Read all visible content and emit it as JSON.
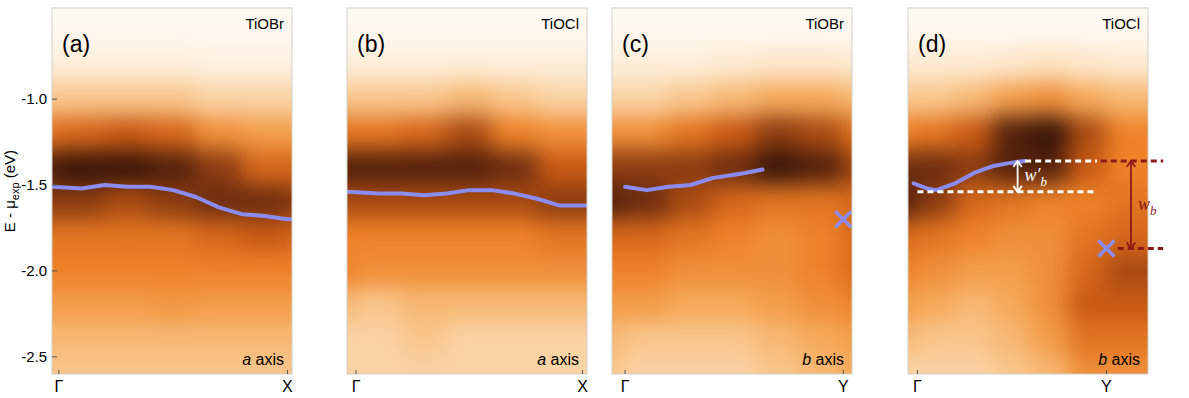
{
  "chart_data": [
    {
      "type": "heatmap",
      "panel": "(a)",
      "title": "TiOBr",
      "axis_label": {
        "text": "a",
        "suffix": " axis"
      },
      "xlim": [
        -0.03,
        1.02
      ],
      "ylim": [
        -2.6,
        -0.47
      ],
      "xticks": [
        {
          "value": 0,
          "label": "Γ"
        },
        {
          "value": 1,
          "label": "X"
        }
      ],
      "yticks": [
        {
          "value": -1,
          "label": "-1.0"
        },
        {
          "value": -1.5,
          "label": "-1.5"
        },
        {
          "value": -2,
          "label": "-2.0"
        },
        {
          "value": -2.5,
          "label": "-2.5"
        }
      ],
      "ylabel": {
        "text": "E - μ",
        "subscript": "exp",
        "suffix": " (eV)"
      },
      "tick_labels": true,
      "heatmap": {
        "x": [
          -0.1,
          0.1,
          0.3,
          0.5,
          0.7,
          0.9,
          1.1,
          1.3
        ],
        "y": [
          -0.4,
          -0.6,
          -0.8,
          -1.0,
          -1.2,
          -1.4,
          -1.6,
          -1.8,
          -2.0,
          -2.2,
          -2.4,
          -2.6,
          -2.8
        ],
        "zlim": [
          0,
          1
        ],
        "values": [
          [
            0,
            0,
            0,
            0,
            0,
            0,
            0,
            0
          ],
          [
            0.02,
            0.02,
            0.02,
            0.02,
            0.02,
            0.02,
            0.02,
            0.02
          ],
          [
            0.08,
            0.08,
            0.08,
            0.08,
            0.06,
            0.06,
            0.06,
            0.06
          ],
          [
            0.25,
            0.25,
            0.25,
            0.25,
            0.2,
            0.2,
            0.2,
            0.2
          ],
          [
            0.55,
            0.6,
            0.65,
            0.6,
            0.45,
            0.4,
            0.4,
            0.4
          ],
          [
            0.85,
            0.9,
            0.9,
            0.85,
            0.75,
            0.6,
            0.6,
            0.6
          ],
          [
            0.75,
            0.75,
            0.7,
            0.75,
            0.8,
            0.8,
            0.75,
            0.75
          ],
          [
            0.55,
            0.55,
            0.55,
            0.55,
            0.6,
            0.65,
            0.6,
            0.6
          ],
          [
            0.5,
            0.5,
            0.5,
            0.5,
            0.5,
            0.5,
            0.5,
            0.5
          ],
          [
            0.4,
            0.4,
            0.4,
            0.42,
            0.4,
            0.4,
            0.4,
            0.4
          ],
          [
            0.3,
            0.3,
            0.3,
            0.3,
            0.3,
            0.3,
            0.3,
            0.3
          ],
          [
            0.25,
            0.25,
            0.25,
            0.25,
            0.25,
            0.25,
            0.25,
            0.25
          ],
          [
            0.25,
            0.25,
            0.25,
            0.25,
            0.25,
            0.25,
            0.25,
            0.25
          ]
        ]
      },
      "series": [
        {
          "type": "line",
          "color": "#8a8cf0",
          "x": [
            -0.03,
            0.1,
            0.2,
            0.3,
            0.4,
            0.5,
            0.6,
            0.7,
            0.8,
            0.9,
            1.0,
            1.02
          ],
          "values": [
            -1.51,
            -1.52,
            -1.5,
            -1.51,
            -1.51,
            -1.53,
            -1.57,
            -1.63,
            -1.67,
            -1.68,
            -1.7,
            -1.7
          ]
        }
      ]
    },
    {
      "type": "heatmap",
      "panel": "(b)",
      "title": "TiOCl",
      "axis_label": {
        "text": "a",
        "suffix": " axis"
      },
      "xlim": [
        -0.04,
        1.02
      ],
      "ylim": [
        -2.6,
        -0.47
      ],
      "xticks": [
        {
          "value": 0,
          "label": "Γ"
        },
        {
          "value": 1,
          "label": "X"
        }
      ],
      "tick_labels": "x",
      "heatmap": {
        "x": [
          -0.1,
          0.1,
          0.3,
          0.5,
          0.7,
          0.9,
          1.1,
          1.3
        ],
        "y": [
          -0.4,
          -0.6,
          -0.8,
          -1.0,
          -1.2,
          -1.4,
          -1.6,
          -1.8,
          -2.0,
          -2.2,
          -2.4,
          -2.6,
          -2.8
        ],
        "zlim": [
          0,
          1
        ],
        "values": [
          [
            0,
            0,
            0,
            0,
            0,
            0,
            0,
            0
          ],
          [
            0.02,
            0.02,
            0.02,
            0.02,
            0.02,
            0.02,
            0.02,
            0.02
          ],
          [
            0.08,
            0.08,
            0.08,
            0.08,
            0.08,
            0.08,
            0.08,
            0.08
          ],
          [
            0.25,
            0.25,
            0.25,
            0.3,
            0.25,
            0.2,
            0.2,
            0.2
          ],
          [
            0.55,
            0.55,
            0.6,
            0.7,
            0.5,
            0.45,
            0.45,
            0.45
          ],
          [
            0.85,
            0.85,
            0.85,
            0.85,
            0.8,
            0.65,
            0.65,
            0.65
          ],
          [
            0.7,
            0.7,
            0.7,
            0.7,
            0.7,
            0.75,
            0.75,
            0.75
          ],
          [
            0.5,
            0.5,
            0.5,
            0.5,
            0.5,
            0.55,
            0.55,
            0.55
          ],
          [
            0.5,
            0.45,
            0.45,
            0.45,
            0.45,
            0.45,
            0.45,
            0.45
          ],
          [
            0.3,
            0.25,
            0.3,
            0.3,
            0.3,
            0.3,
            0.3,
            0.3
          ],
          [
            0.2,
            0.2,
            0.25,
            0.2,
            0.2,
            0.2,
            0.2,
            0.2
          ],
          [
            0.2,
            0.2,
            0.2,
            0.2,
            0.2,
            0.2,
            0.2,
            0.2
          ],
          [
            0.2,
            0.2,
            0.2,
            0.2,
            0.2,
            0.2,
            0.2,
            0.2
          ]
        ]
      },
      "series": [
        {
          "type": "line",
          "color": "#8a8cf0",
          "x": [
            -0.04,
            0.1,
            0.2,
            0.3,
            0.4,
            0.5,
            0.6,
            0.7,
            0.8,
            0.9,
            1.0,
            1.02
          ],
          "values": [
            -1.54,
            -1.55,
            -1.55,
            -1.56,
            -1.55,
            -1.53,
            -1.53,
            -1.55,
            -1.58,
            -1.62,
            -1.62,
            -1.62
          ]
        }
      ]
    },
    {
      "type": "heatmap",
      "panel": "(c)",
      "title": "TiOBr",
      "axis_label": {
        "text": "b",
        "suffix": " axis"
      },
      "xlim": [
        -0.06,
        1.04
      ],
      "ylim": [
        -2.6,
        -0.47
      ],
      "xticks": [
        {
          "value": 0,
          "label": "Γ"
        },
        {
          "value": 1,
          "label": "Y"
        }
      ],
      "tick_labels": "x",
      "heatmap": {
        "x": [
          -0.1,
          0.1,
          0.3,
          0.5,
          0.7,
          0.9,
          1.1,
          1.3
        ],
        "y": [
          -0.4,
          -0.6,
          -0.8,
          -1.0,
          -1.2,
          -1.4,
          -1.6,
          -1.8,
          -2.0,
          -2.2,
          -2.4,
          -2.6,
          -2.8
        ],
        "zlim": [
          0,
          1
        ],
        "values": [
          [
            0,
            0,
            0,
            0,
            0,
            0,
            0,
            0
          ],
          [
            0.02,
            0.02,
            0.02,
            0.02,
            0.02,
            0.02,
            0.02,
            0.02
          ],
          [
            0.08,
            0.08,
            0.08,
            0.1,
            0.12,
            0.12,
            0.1,
            0.1
          ],
          [
            0.2,
            0.2,
            0.25,
            0.3,
            0.35,
            0.35,
            0.3,
            0.3
          ],
          [
            0.45,
            0.45,
            0.55,
            0.65,
            0.75,
            0.7,
            0.55,
            0.55
          ],
          [
            0.75,
            0.75,
            0.75,
            0.8,
            0.9,
            0.85,
            0.7,
            0.7
          ],
          [
            0.85,
            0.8,
            0.7,
            0.6,
            0.55,
            0.55,
            0.6,
            0.6
          ],
          [
            0.6,
            0.6,
            0.55,
            0.5,
            0.45,
            0.5,
            0.6,
            0.6
          ],
          [
            0.5,
            0.5,
            0.45,
            0.45,
            0.45,
            0.5,
            0.6,
            0.6
          ],
          [
            0.4,
            0.4,
            0.35,
            0.35,
            0.4,
            0.45,
            0.5,
            0.5
          ],
          [
            0.3,
            0.25,
            0.25,
            0.25,
            0.3,
            0.35,
            0.4,
            0.4
          ],
          [
            0.25,
            0.2,
            0.2,
            0.2,
            0.25,
            0.3,
            0.35,
            0.35
          ],
          [
            0.25,
            0.2,
            0.2,
            0.2,
            0.25,
            0.3,
            0.35,
            0.35
          ]
        ]
      },
      "series": [
        {
          "type": "line",
          "color": "#8a8cf0",
          "x": [
            0,
            0.1,
            0.2,
            0.3,
            0.4,
            0.5,
            0.55,
            0.63
          ],
          "values": [
            -1.51,
            -1.53,
            -1.51,
            -1.5,
            -1.46,
            -1.44,
            -1.43,
            -1.41
          ]
        },
        {
          "type": "scatter",
          "marker": "x",
          "color": "#8a8cf0",
          "x": [
            1.0
          ],
          "values": [
            -1.7
          ]
        }
      ]
    },
    {
      "type": "heatmap",
      "panel": "(d)",
      "title": "TiOCl",
      "axis_label": {
        "text": "b",
        "suffix": " axis"
      },
      "xlim": [
        -0.05,
        1.22
      ],
      "ylim": [
        -2.6,
        -0.47
      ],
      "xticks": [
        {
          "value": 0,
          "label": "Γ"
        },
        {
          "value": 1,
          "label": "Y"
        }
      ],
      "tick_labels": "x",
      "heatmap": {
        "x": [
          -0.1,
          0.1,
          0.3,
          0.5,
          0.7,
          0.9,
          1.1,
          1.3
        ],
        "y": [
          -0.4,
          -0.6,
          -0.8,
          -1.0,
          -1.2,
          -1.4,
          -1.6,
          -1.8,
          -2.0,
          -2.2,
          -2.4,
          -2.6,
          -2.8
        ],
        "zlim": [
          0,
          1
        ],
        "values": [
          [
            0,
            0,
            0,
            0,
            0,
            0,
            0,
            0
          ],
          [
            0.02,
            0.02,
            0.02,
            0.02,
            0.02,
            0.02,
            0.02,
            0.02
          ],
          [
            0.1,
            0.1,
            0.1,
            0.12,
            0.15,
            0.12,
            0.1,
            0.1
          ],
          [
            0.25,
            0.25,
            0.3,
            0.4,
            0.45,
            0.35,
            0.3,
            0.3
          ],
          [
            0.5,
            0.55,
            0.65,
            0.85,
            0.9,
            0.7,
            0.5,
            0.5
          ],
          [
            0.8,
            0.8,
            0.75,
            0.85,
            0.85,
            0.65,
            0.5,
            0.5
          ],
          [
            0.85,
            0.75,
            0.6,
            0.55,
            0.5,
            0.5,
            0.55,
            0.55
          ],
          [
            0.6,
            0.55,
            0.5,
            0.45,
            0.45,
            0.55,
            0.6,
            0.6
          ],
          [
            0.5,
            0.45,
            0.4,
            0.4,
            0.45,
            0.6,
            0.7,
            0.7
          ],
          [
            0.4,
            0.35,
            0.3,
            0.35,
            0.45,
            0.65,
            0.65,
            0.65
          ],
          [
            0.3,
            0.25,
            0.25,
            0.3,
            0.4,
            0.55,
            0.55,
            0.55
          ],
          [
            0.2,
            0.2,
            0.2,
            0.25,
            0.3,
            0.45,
            0.45,
            0.45
          ],
          [
            0.2,
            0.2,
            0.2,
            0.25,
            0.3,
            0.45,
            0.45,
            0.45
          ]
        ]
      },
      "series": [
        {
          "type": "line",
          "color": "#8a8cf0",
          "x": [
            -0.02,
            0,
            0.05,
            0.1,
            0.2,
            0.3,
            0.4,
            0.5,
            0.57
          ],
          "values": [
            -1.49,
            -1.5,
            -1.52,
            -1.53,
            -1.49,
            -1.43,
            -1.39,
            -1.37,
            -1.36
          ]
        },
        {
          "type": "scatter",
          "marker": "x",
          "color": "#8a8cf0",
          "x": [
            1.0
          ],
          "values": [
            -1.87
          ]
        }
      ],
      "annotations": [
        {
          "type": "dashed",
          "y": -1.36,
          "x": [
            0.57,
            0.95
          ],
          "color": "#ffffff"
        },
        {
          "type": "dashed",
          "y": -1.54,
          "x": [
            0,
            0.95
          ],
          "color": "#ffffff"
        },
        {
          "type": "dashed",
          "y": -1.36,
          "x": [
            0.97,
            1.3
          ],
          "color": "#8b1a1a"
        },
        {
          "type": "dashed",
          "y": -1.87,
          "x": [
            1.06,
            1.3
          ],
          "color": "#8b1a1a"
        },
        {
          "type": "arrow",
          "x": 0.53,
          "y": [
            -1.36,
            -1.54
          ],
          "color": "#ffffff",
          "label": "w′",
          "subscript": "b"
        },
        {
          "type": "arrow",
          "x": 1.13,
          "y": [
            -1.36,
            -1.87
          ],
          "color": "#8b1a1a",
          "label": "w",
          "subscript": "b"
        }
      ]
    }
  ]
}
